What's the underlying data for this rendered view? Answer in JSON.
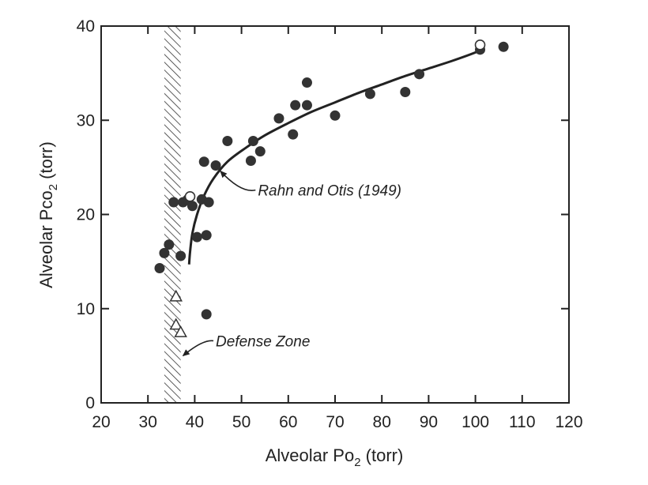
{
  "chart_data": {
    "type": "scatter",
    "xlabel": {
      "main": "Alveolar Po",
      "sub": "2",
      "tail": " (torr)"
    },
    "ylabel": {
      "main": "Alveolar Pco",
      "sub": "2",
      "tail": " (torr)"
    },
    "xlim": [
      20,
      120
    ],
    "ylim": [
      0,
      40
    ],
    "x_ticks": [
      20,
      30,
      40,
      50,
      60,
      70,
      80,
      90,
      100,
      110,
      120
    ],
    "y_ticks": [
      0,
      10,
      20,
      30,
      40
    ],
    "grid": false,
    "series": [
      {
        "marker": "filled-circle",
        "color": "#333333",
        "points": [
          [
            32.5,
            14.3
          ],
          [
            33.5,
            15.9
          ],
          [
            34.5,
            16.8
          ],
          [
            35.5,
            21.3
          ],
          [
            37,
            15.6
          ],
          [
            37.5,
            21.3
          ],
          [
            38.5,
            21.6
          ],
          [
            39.5,
            20.9
          ],
          [
            40.5,
            17.6
          ],
          [
            41.5,
            21.6
          ],
          [
            42,
            25.6
          ],
          [
            42.5,
            17.8
          ],
          [
            43,
            21.3
          ],
          [
            42.5,
            9.4
          ],
          [
            44.5,
            25.2
          ],
          [
            47,
            27.8
          ],
          [
            52,
            25.7
          ],
          [
            52.5,
            27.8
          ],
          [
            54,
            26.7
          ],
          [
            58,
            30.2
          ],
          [
            61,
            28.5
          ],
          [
            61.5,
            31.6
          ],
          [
            64,
            34.0
          ],
          [
            64,
            31.6
          ],
          [
            70,
            30.5
          ],
          [
            77.5,
            32.8
          ],
          [
            85,
            33.0
          ],
          [
            88,
            34.9
          ],
          [
            101,
            37.5
          ],
          [
            106,
            37.8
          ]
        ]
      },
      {
        "marker": "open-circle",
        "color": "#333333",
        "points": [
          [
            39,
            21.9
          ],
          [
            101,
            38.0
          ]
        ]
      },
      {
        "marker": "open-triangle",
        "color": "#333333",
        "points": [
          [
            36,
            11.3
          ],
          [
            36,
            8.3
          ],
          [
            37,
            7.5
          ]
        ]
      }
    ],
    "curve": {
      "label": "Rahn and Otis (1949)",
      "points": [
        [
          38.8,
          14.7
        ],
        [
          39,
          16
        ],
        [
          39.5,
          18
        ],
        [
          40.5,
          20
        ],
        [
          42,
          22
        ],
        [
          44,
          23.8
        ],
        [
          47,
          25.6
        ],
        [
          51,
          27.1
        ],
        [
          55,
          28.4
        ],
        [
          60,
          29.7
        ],
        [
          65,
          30.9
        ],
        [
          70,
          31.9
        ],
        [
          75,
          32.9
        ],
        [
          80,
          33.8
        ],
        [
          85,
          34.7
        ],
        [
          90,
          35.5
        ],
        [
          95,
          36.3
        ],
        [
          100,
          37.2
        ],
        [
          101,
          37.5
        ]
      ]
    },
    "band": {
      "label": "Defense Zone",
      "x_range": [
        33.5,
        37
      ]
    },
    "annotations": [
      {
        "text": "Rahn and Otis (1949)",
        "text_at": [
          53.5,
          22.0
        ],
        "arrow_to": [
          45.5,
          24.6
        ]
      },
      {
        "text": "Defense Zone",
        "text_at": [
          44.5,
          6.0
        ],
        "arrow_to": [
          37.5,
          5.0
        ]
      }
    ]
  }
}
